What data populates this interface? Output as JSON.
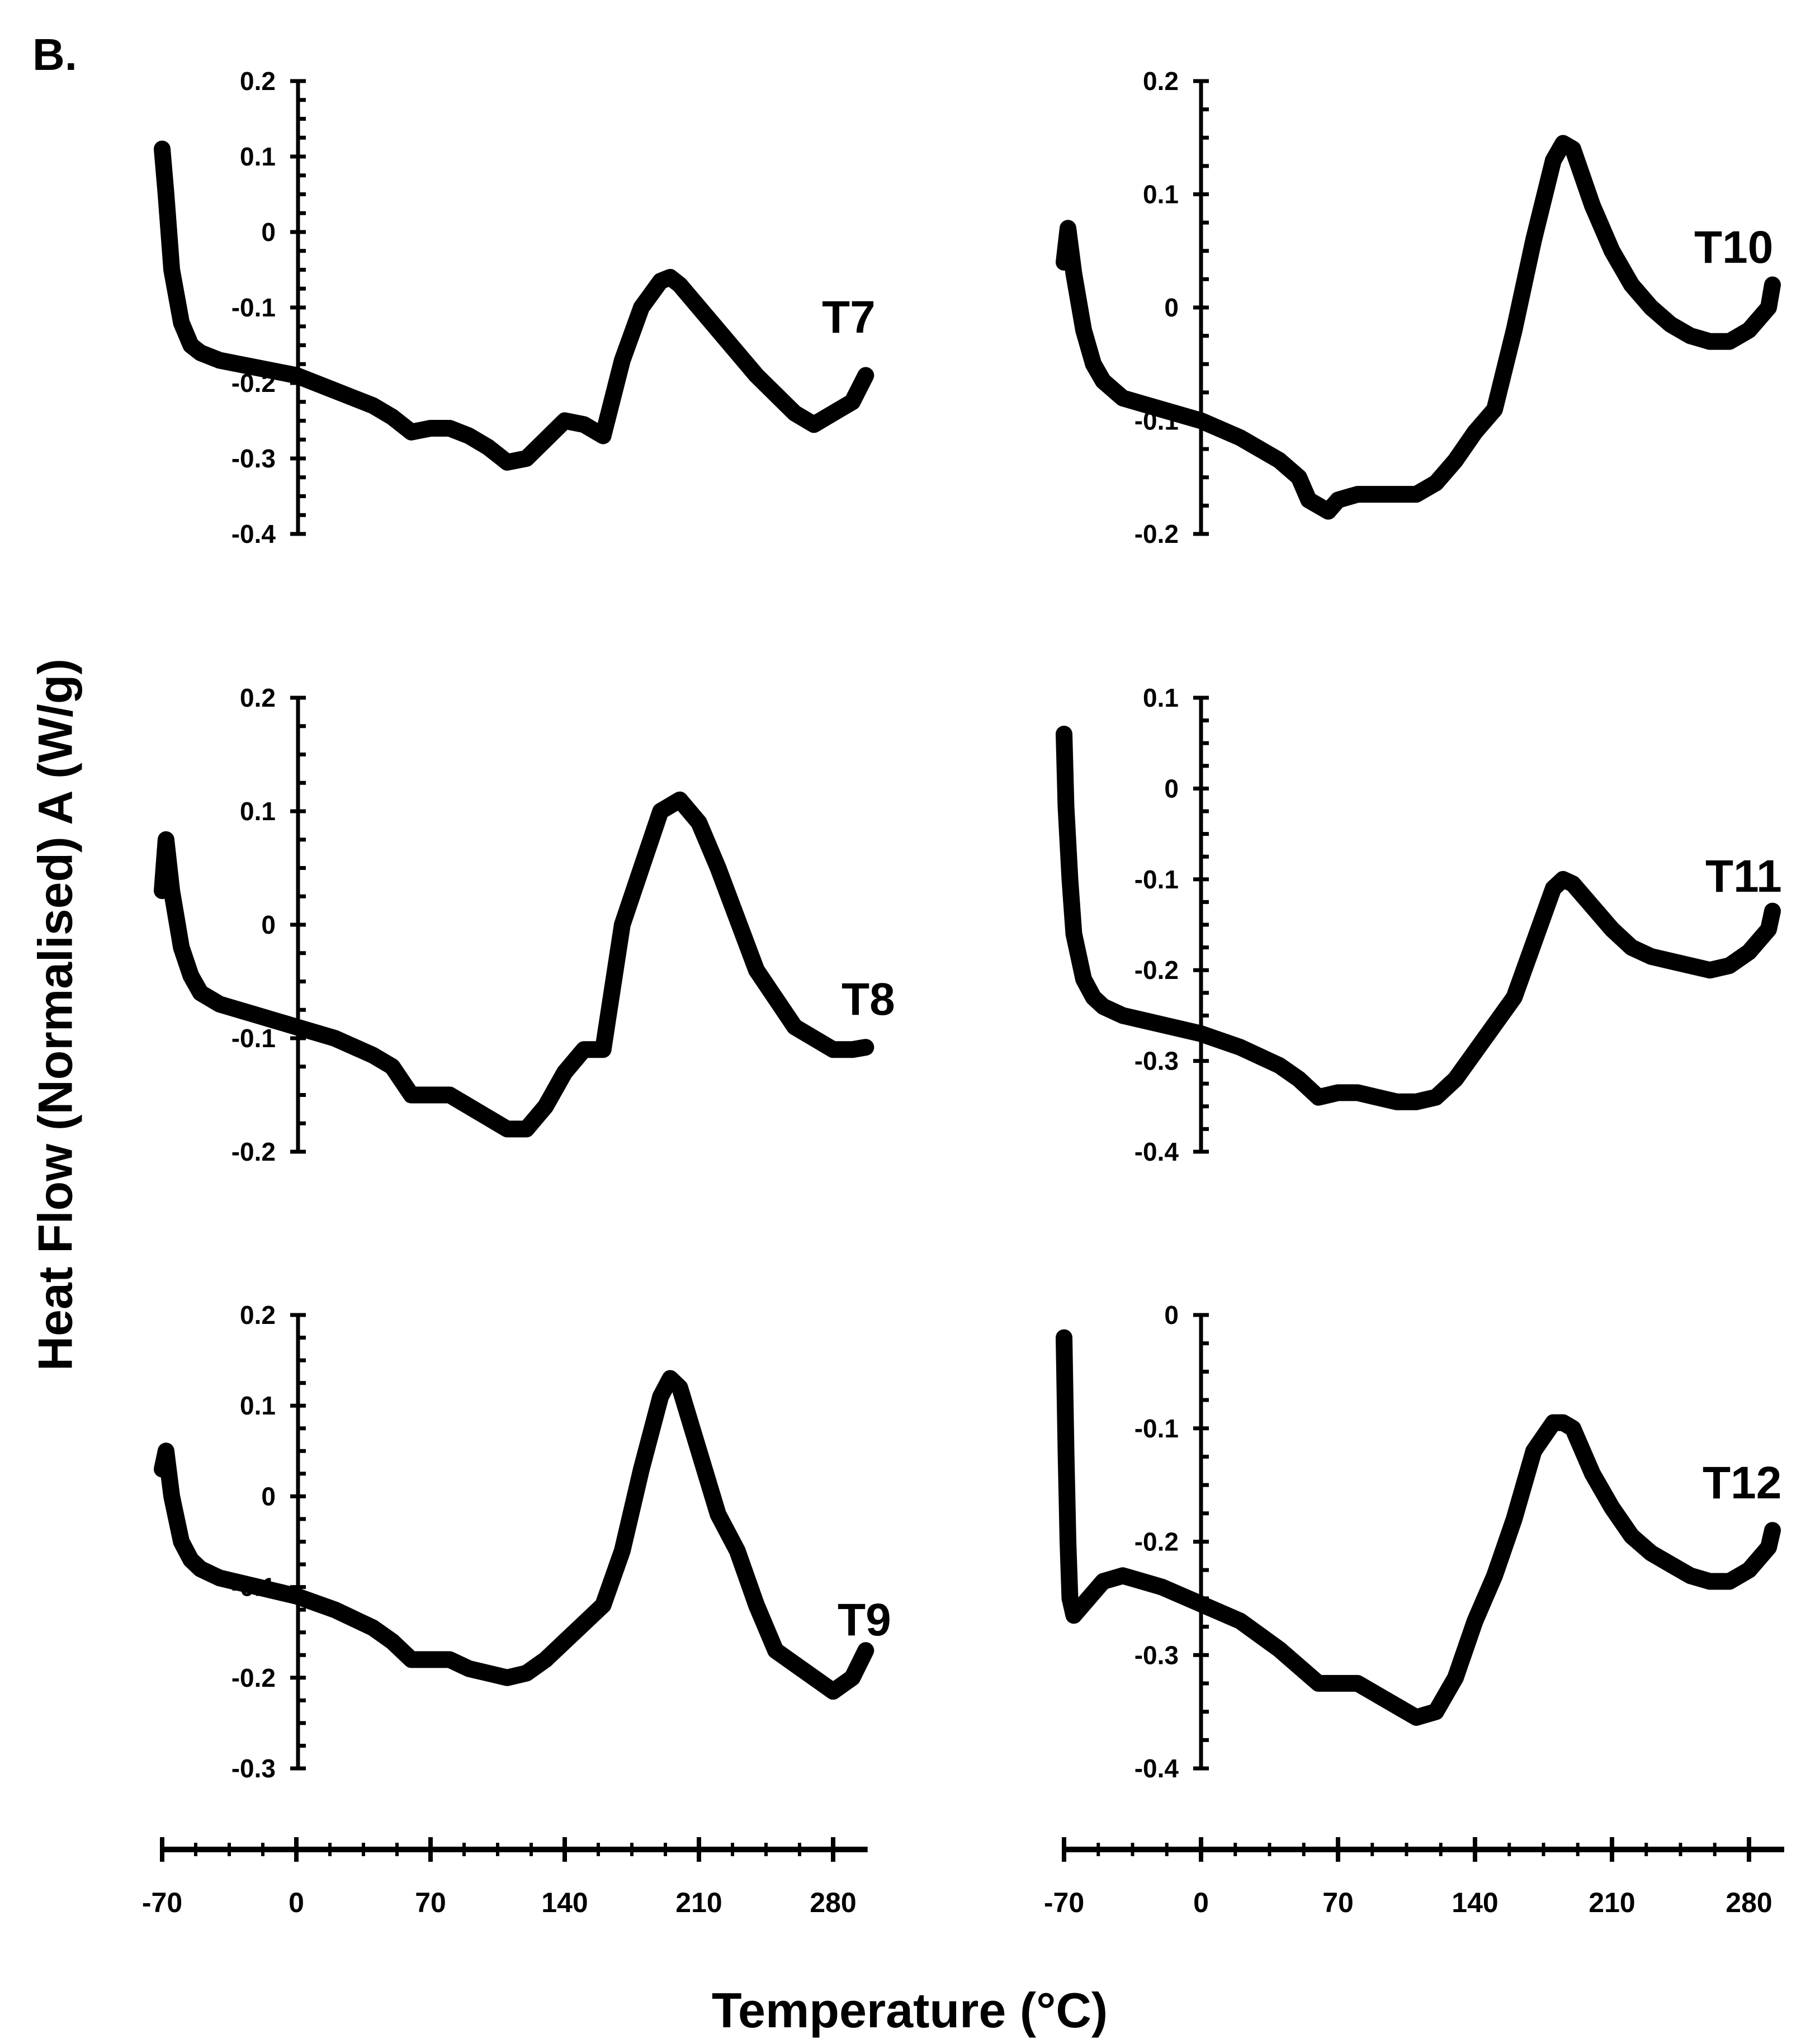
{
  "panel_label": "B.",
  "y_axis_title": "Heat Flow (Normalised) A (W/g)",
  "x_axis_title": "Temperature (°C)",
  "colors": {
    "curve": "#000000",
    "axis": "#000000",
    "background": "#ffffff"
  },
  "chart_data": [
    {
      "type": "line",
      "series_label": "T7",
      "ylim": [
        -0.4,
        0.2
      ],
      "xlim": [
        -70,
        300
      ],
      "y_ticks": [
        "0.2",
        "0.1",
        "0",
        "-0.1",
        "-0.2",
        "-0.3",
        "-0.4"
      ],
      "x": [
        -70,
        -68,
        -65,
        -60,
        -55,
        -50,
        -40,
        -20,
        0,
        20,
        40,
        50,
        60,
        70,
        80,
        90,
        100,
        110,
        120,
        130,
        140,
        150,
        160,
        170,
        180,
        190,
        195,
        200,
        210,
        220,
        240,
        260,
        270,
        280,
        290,
        297
      ],
      "y": [
        0.11,
        0.05,
        -0.05,
        -0.12,
        -0.15,
        -0.16,
        -0.17,
        -0.18,
        -0.19,
        -0.21,
        -0.23,
        -0.245,
        -0.265,
        -0.26,
        -0.26,
        -0.27,
        -0.285,
        -0.305,
        -0.3,
        -0.275,
        -0.25,
        -0.255,
        -0.27,
        -0.17,
        -0.1,
        -0.065,
        -0.06,
        -0.07,
        -0.1,
        -0.13,
        -0.19,
        -0.24,
        -0.255,
        -0.24,
        -0.225,
        -0.19
      ]
    },
    {
      "type": "line",
      "series_label": "T8",
      "ylim": [
        -0.2,
        0.2
      ],
      "xlim": [
        -70,
        300
      ],
      "y_ticks": [
        "0.2",
        "0.1",
        "0",
        "-0.1",
        "-0.2"
      ],
      "x": [
        -70,
        -68,
        -65,
        -60,
        -55,
        -50,
        -40,
        -20,
        0,
        20,
        40,
        50,
        60,
        70,
        80,
        90,
        100,
        110,
        120,
        130,
        140,
        150,
        160,
        170,
        180,
        190,
        200,
        210,
        220,
        240,
        260,
        270,
        280,
        290,
        297
      ],
      "y": [
        0.03,
        0.075,
        0.03,
        -0.02,
        -0.045,
        -0.06,
        -0.07,
        -0.08,
        -0.09,
        -0.1,
        -0.115,
        -0.125,
        -0.15,
        -0.15,
        -0.15,
        -0.16,
        -0.17,
        -0.18,
        -0.18,
        -0.16,
        -0.13,
        -0.11,
        -0.11,
        0.0,
        0.05,
        0.1,
        0.11,
        0.09,
        0.05,
        -0.04,
        -0.09,
        -0.1,
        -0.11,
        -0.11,
        -0.108
      ]
    },
    {
      "type": "line",
      "series_label": "T9",
      "ylim": [
        -0.3,
        0.2
      ],
      "xlim": [
        -70,
        300
      ],
      "y_ticks": [
        "0.2",
        "0.1",
        "0",
        "-0.1",
        "-0.2",
        "-0.3"
      ],
      "x": [
        -70,
        -68,
        -65,
        -60,
        -55,
        -50,
        -40,
        -20,
        0,
        20,
        40,
        50,
        60,
        70,
        80,
        90,
        100,
        110,
        120,
        130,
        140,
        150,
        160,
        170,
        180,
        190,
        195,
        200,
        210,
        220,
        230,
        240,
        250,
        260,
        270,
        280,
        290,
        297
      ],
      "y": [
        0.03,
        0.05,
        0.0,
        -0.05,
        -0.07,
        -0.08,
        -0.09,
        -0.1,
        -0.11,
        -0.125,
        -0.145,
        -0.16,
        -0.18,
        -0.18,
        -0.18,
        -0.19,
        -0.195,
        -0.2,
        -0.195,
        -0.18,
        -0.16,
        -0.14,
        -0.12,
        -0.06,
        0.03,
        0.11,
        0.13,
        0.12,
        0.05,
        -0.02,
        -0.06,
        -0.12,
        -0.17,
        -0.185,
        -0.2,
        -0.215,
        -0.2,
        -0.17
      ]
    },
    {
      "type": "line",
      "series_label": "T10",
      "ylim": [
        -0.2,
        0.2
      ],
      "xlim": [
        -70,
        300
      ],
      "y_ticks": [
        "0.2",
        "0.1",
        "0",
        "-0.1",
        "-0.2"
      ],
      "x": [
        -70,
        -68,
        -65,
        -60,
        -55,
        -50,
        -40,
        -20,
        0,
        20,
        40,
        50,
        55,
        60,
        65,
        70,
        80,
        90,
        100,
        110,
        120,
        130,
        140,
        150,
        160,
        170,
        180,
        185,
        190,
        200,
        210,
        220,
        230,
        240,
        250,
        260,
        270,
        280,
        290,
        292
      ],
      "y": [
        0.04,
        0.07,
        0.03,
        -0.02,
        -0.05,
        -0.065,
        -0.08,
        -0.09,
        -0.1,
        -0.115,
        -0.135,
        -0.15,
        -0.17,
        -0.175,
        -0.18,
        -0.17,
        -0.165,
        -0.165,
        -0.165,
        -0.165,
        -0.155,
        -0.135,
        -0.11,
        -0.09,
        -0.02,
        0.06,
        0.13,
        0.145,
        0.14,
        0.09,
        0.05,
        0.02,
        0.0,
        -0.015,
        -0.025,
        -0.03,
        -0.03,
        -0.02,
        0.0,
        0.02
      ]
    },
    {
      "type": "line",
      "series_label": "T11",
      "ylim": [
        -0.4,
        0.1
      ],
      "xlim": [
        -70,
        300
      ],
      "y_ticks": [
        "0.1",
        "0",
        "-0.1",
        "-0.2",
        "-0.3",
        "-0.4"
      ],
      "x": [
        -70,
        -69,
        -67,
        -65,
        -60,
        -55,
        -50,
        -40,
        -20,
        0,
        20,
        40,
        50,
        60,
        70,
        80,
        90,
        100,
        110,
        120,
        130,
        140,
        150,
        160,
        170,
        180,
        185,
        190,
        200,
        210,
        220,
        230,
        240,
        250,
        260,
        270,
        280,
        290,
        292
      ],
      "y": [
        0.06,
        -0.02,
        -0.1,
        -0.16,
        -0.21,
        -0.23,
        -0.24,
        -0.25,
        -0.26,
        -0.27,
        -0.285,
        -0.305,
        -0.32,
        -0.34,
        -0.335,
        -0.335,
        -0.34,
        -0.345,
        -0.345,
        -0.34,
        -0.32,
        -0.29,
        -0.26,
        -0.23,
        -0.17,
        -0.11,
        -0.1,
        -0.105,
        -0.13,
        -0.155,
        -0.175,
        -0.185,
        -0.19,
        -0.195,
        -0.2,
        -0.195,
        -0.18,
        -0.155,
        -0.135
      ]
    },
    {
      "type": "line",
      "series_label": "T12",
      "ylim": [
        -0.4,
        0
      ],
      "xlim": [
        -70,
        300
      ],
      "y_ticks": [
        "0",
        "-0.1",
        "-0.2",
        "-0.3",
        "-0.4"
      ],
      "x": [
        -70,
        -69,
        -68,
        -67,
        -65,
        -60,
        -50,
        -40,
        -20,
        0,
        20,
        40,
        50,
        60,
        70,
        80,
        90,
        100,
        110,
        120,
        130,
        140,
        150,
        160,
        170,
        180,
        185,
        190,
        200,
        210,
        220,
        230,
        240,
        250,
        260,
        270,
        280,
        290,
        292
      ],
      "y": [
        -0.02,
        -0.12,
        -0.2,
        -0.25,
        -0.265,
        -0.255,
        -0.235,
        -0.23,
        -0.24,
        -0.255,
        -0.27,
        -0.295,
        -0.31,
        -0.325,
        -0.325,
        -0.325,
        -0.335,
        -0.345,
        -0.355,
        -0.35,
        -0.32,
        -0.27,
        -0.23,
        -0.18,
        -0.12,
        -0.095,
        -0.095,
        -0.1,
        -0.14,
        -0.17,
        -0.195,
        -0.21,
        -0.22,
        -0.23,
        -0.235,
        -0.235,
        -0.225,
        -0.205,
        -0.19
      ]
    }
  ],
  "x_axes": [
    {
      "ticks": [
        "-70",
        "0",
        "70",
        "140",
        "210",
        "280"
      ]
    },
    {
      "ticks": [
        "-70",
        "0",
        "70",
        "140",
        "210",
        "280"
      ]
    }
  ]
}
